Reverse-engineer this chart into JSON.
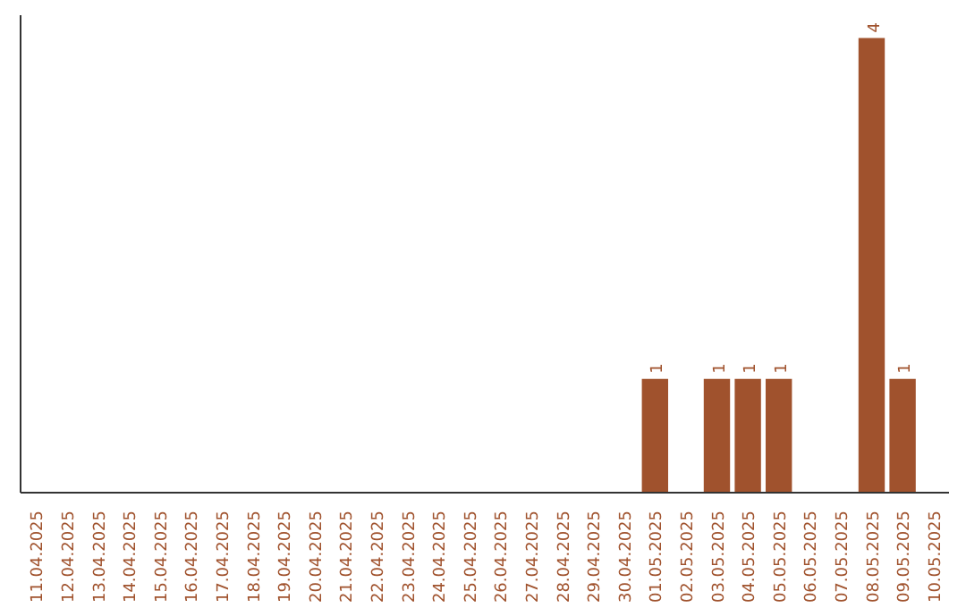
{
  "chart_data": {
    "type": "bar",
    "categories": [
      "11.04.2025",
      "12.04.2025",
      "13.04.2025",
      "14.04.2025",
      "15.04.2025",
      "16.04.2025",
      "17.04.2025",
      "18.04.2025",
      "19.04.2025",
      "20.04.2025",
      "21.04.2025",
      "22.04.2025",
      "23.04.2025",
      "24.04.2025",
      "25.04.2025",
      "26.04.2025",
      "27.04.2025",
      "28.04.2025",
      "29.04.2025",
      "30.04.2025",
      "01.05.2025",
      "02.05.2025",
      "03.05.2025",
      "04.05.2025",
      "05.05.2025",
      "06.05.2025",
      "07.05.2025",
      "08.05.2025",
      "09.05.2025",
      "10.05.2025"
    ],
    "values": [
      null,
      null,
      null,
      null,
      null,
      null,
      null,
      null,
      null,
      null,
      null,
      null,
      null,
      null,
      null,
      null,
      null,
      null,
      null,
      null,
      1,
      null,
      1,
      1,
      1,
      null,
      null,
      4,
      1,
      null
    ],
    "data_labels": true,
    "color": "#a0522d",
    "tick_labels": "x",
    "grid": false
  }
}
